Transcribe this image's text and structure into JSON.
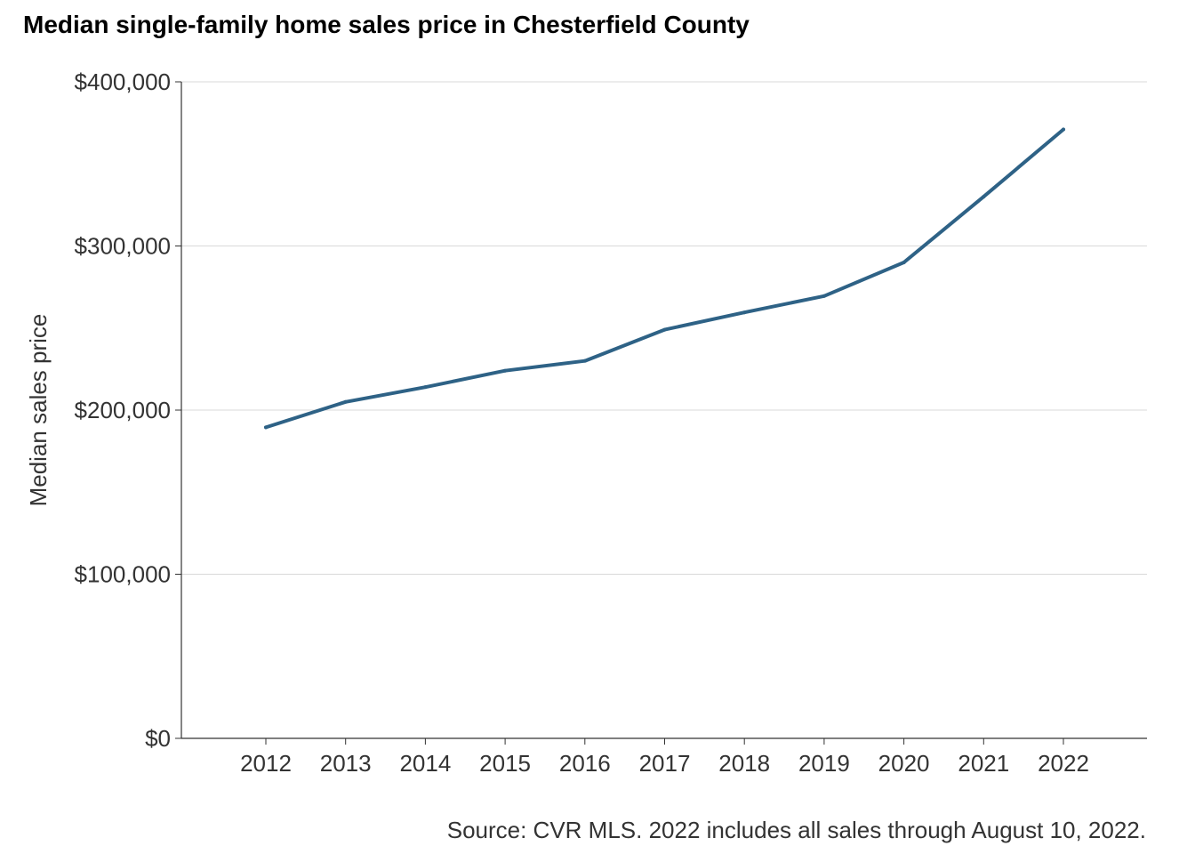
{
  "chart_data": {
    "type": "line",
    "title": "Median single-family home sales price in Chesterfield County",
    "source": "Source: CVR MLS. 2022 includes all sales through August 10, 2022.",
    "xlabel": "",
    "ylabel": "Median sales price",
    "x": [
      "2012",
      "2013",
      "2014",
      "2015",
      "2016",
      "2017",
      "2018",
      "2019",
      "2020",
      "2021",
      "2022"
    ],
    "series": [
      {
        "values": [
          189500,
          205000,
          214000,
          224000,
          230000,
          249000,
          259500,
          269500,
          290000,
          330000,
          371000
        ]
      }
    ],
    "ylim": [
      0,
      400000
    ],
    "yticks": [
      0,
      100000,
      200000,
      300000,
      400000
    ],
    "ytick_labels": [
      "$0",
      "$100,000",
      "$200,000",
      "$300,000",
      "$400,000"
    ],
    "grid": "horizontal",
    "legend": "none",
    "colors": {
      "line": "#2e6286",
      "grid": "#d9d9d9",
      "axis": "#333333",
      "text": "#333333"
    }
  }
}
